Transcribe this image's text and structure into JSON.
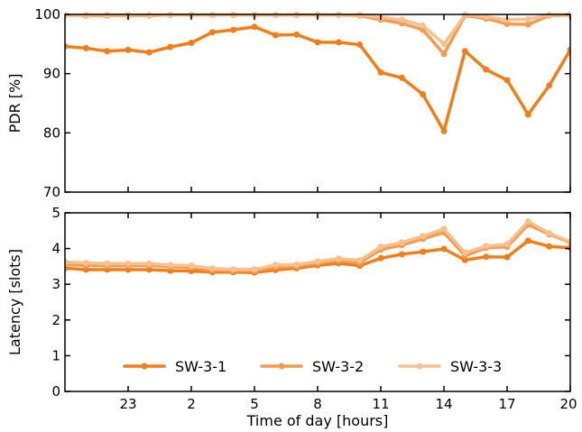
{
  "chart_data": [
    {
      "type": "line",
      "xlabel": "",
      "ylabel": "PDR [%]",
      "ylim": [
        70,
        100
      ],
      "yticks": [
        70,
        80,
        90,
        100
      ],
      "xlim": [
        20,
        44
      ],
      "xticks": [
        23,
        26,
        29,
        32,
        35,
        38,
        41,
        44
      ],
      "xtick_labels": [
        "23",
        "2",
        "5",
        "8",
        "11",
        "14",
        "17",
        "20"
      ],
      "grid": false,
      "series": [
        {
          "name": "SW-3-1",
          "color": "#f07f19",
          "x": [
            20,
            21,
            22,
            23,
            24,
            25,
            26,
            27,
            28,
            29,
            30,
            31,
            32,
            33,
            34,
            35,
            36,
            37,
            38,
            39,
            40,
            41,
            42,
            43,
            44
          ],
          "values": [
            94.6,
            94.3,
            93.8,
            94.0,
            93.6,
            94.5,
            95.2,
            97.0,
            97.4,
            97.9,
            96.5,
            96.6,
            95.3,
            95.3,
            94.9,
            90.2,
            89.3,
            86.5,
            80.3,
            93.8,
            90.7,
            88.9,
            83.1,
            88.0,
            94.0
          ]
        },
        {
          "name": "SW-3-2",
          "color": "#f49b4e",
          "x": [
            20,
            21,
            22,
            23,
            24,
            25,
            26,
            27,
            28,
            29,
            30,
            31,
            32,
            33,
            34,
            35,
            36,
            37,
            38,
            39,
            40,
            41,
            42,
            43,
            44
          ],
          "values": [
            99.9,
            99.8,
            99.8,
            99.8,
            99.8,
            99.9,
            99.9,
            99.9,
            99.9,
            99.9,
            99.9,
            99.9,
            99.9,
            99.9,
            99.8,
            99.1,
            98.5,
            97.4,
            93.3,
            99.8,
            99.3,
            98.4,
            98.3,
            99.8,
            99.9
          ]
        },
        {
          "name": "SW-3-3",
          "color": "#f8c08e",
          "x": [
            20,
            21,
            22,
            23,
            24,
            25,
            26,
            27,
            28,
            29,
            30,
            31,
            32,
            33,
            34,
            35,
            36,
            37,
            38,
            39,
            40,
            41,
            42,
            43,
            44
          ],
          "values": [
            99.9,
            99.9,
            99.9,
            99.9,
            99.9,
            99.9,
            99.9,
            99.9,
            99.9,
            99.9,
            99.9,
            99.9,
            99.9,
            99.9,
            99.9,
            99.5,
            99.1,
            98.1,
            95.0,
            99.9,
            99.6,
            99.1,
            99.2,
            99.9,
            100.0
          ]
        }
      ]
    },
    {
      "type": "line",
      "xlabel": "Time of day [hours]",
      "ylabel": "Latency [slots]",
      "ylim": [
        0,
        5
      ],
      "yticks": [
        0,
        1,
        2,
        3,
        4,
        5
      ],
      "xlim": [
        20,
        44
      ],
      "xticks": [
        23,
        26,
        29,
        32,
        35,
        38,
        41,
        44
      ],
      "xtick_labels": [
        "23",
        "2",
        "5",
        "8",
        "11",
        "14",
        "17",
        "20"
      ],
      "grid": false,
      "legend": "bottom-center",
      "series": [
        {
          "name": "SW-3-1",
          "color": "#f07f19",
          "x": [
            20,
            21,
            22,
            23,
            24,
            25,
            26,
            27,
            28,
            29,
            30,
            31,
            32,
            33,
            34,
            35,
            36,
            37,
            38,
            39,
            40,
            41,
            42,
            43,
            44
          ],
          "values": [
            3.45,
            3.41,
            3.41,
            3.41,
            3.41,
            3.38,
            3.37,
            3.34,
            3.34,
            3.33,
            3.4,
            3.45,
            3.53,
            3.59,
            3.52,
            3.73,
            3.84,
            3.91,
            3.99,
            3.68,
            3.77,
            3.76,
            4.22,
            4.06,
            4.02
          ]
        },
        {
          "name": "SW-3-2",
          "color": "#f49b4e",
          "x": [
            20,
            21,
            22,
            23,
            24,
            25,
            26,
            27,
            28,
            29,
            30,
            31,
            32,
            33,
            34,
            35,
            36,
            37,
            38,
            39,
            40,
            41,
            42,
            43,
            44
          ],
          "values": [
            3.55,
            3.53,
            3.52,
            3.52,
            3.53,
            3.49,
            3.47,
            3.4,
            3.38,
            3.38,
            3.48,
            3.5,
            3.59,
            3.66,
            3.6,
            3.97,
            4.1,
            4.27,
            4.45,
            3.8,
            4.02,
            4.05,
            4.67,
            4.4,
            4.17
          ]
        },
        {
          "name": "SW-3-3",
          "color": "#f8c08e",
          "x": [
            20,
            21,
            22,
            23,
            24,
            25,
            26,
            27,
            28,
            29,
            30,
            31,
            32,
            33,
            34,
            35,
            36,
            37,
            38,
            39,
            40,
            41,
            42,
            43,
            44
          ],
          "values": [
            3.62,
            3.6,
            3.58,
            3.58,
            3.58,
            3.54,
            3.52,
            3.44,
            3.42,
            3.42,
            3.54,
            3.55,
            3.64,
            3.72,
            3.67,
            4.05,
            4.17,
            4.35,
            4.55,
            3.88,
            4.07,
            4.12,
            4.76,
            4.43,
            4.19
          ]
        }
      ]
    }
  ]
}
